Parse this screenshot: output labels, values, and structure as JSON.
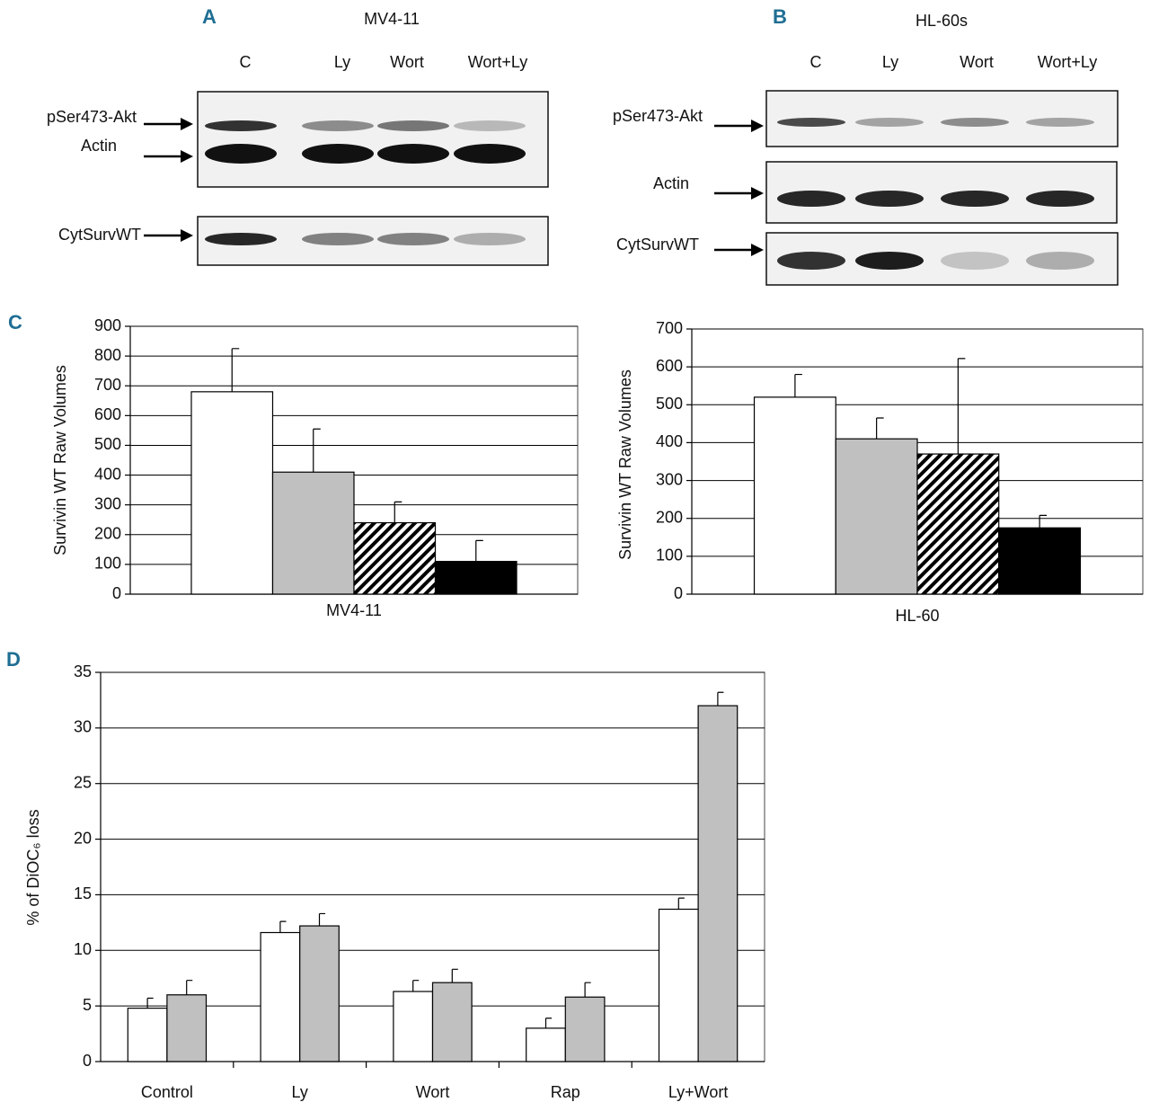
{
  "panels": [
    {
      "letter": "A",
      "title": "MV4-11",
      "lanes": [
        "C",
        "Ly",
        "Wort",
        "Wort+Ly"
      ],
      "rows": [
        "pSer473-Akt",
        "Actin",
        "CytSurvWT"
      ]
    },
    {
      "letter": "B",
      "title": "HL-60s",
      "lanes": [
        "C",
        "Ly",
        "Wort",
        "Wort+Ly"
      ],
      "rows": [
        "pSer473-Akt",
        "Actin",
        "CytSurvWT"
      ]
    }
  ],
  "chart_data": [
    {
      "type": "bar",
      "panel": "C",
      "y_label": "Survivin WT Raw Volumes",
      "categories": [
        "MV4-11"
      ],
      "series": [
        {
          "color": "#ffffff",
          "values": [
            680
          ],
          "errors": [
            145
          ]
        },
        {
          "color": "#c0c0c0",
          "values": [
            410
          ],
          "errors": [
            145
          ]
        },
        {
          "color": "#000000",
          "pattern": "stripes",
          "values": [
            240
          ],
          "errors": [
            70
          ]
        },
        {
          "color": "#000000",
          "values": [
            110
          ],
          "errors": [
            70
          ]
        }
      ],
      "ylim": [
        0,
        900
      ],
      "yticks": [
        0,
        100,
        200,
        300,
        400,
        500,
        600,
        700,
        800,
        900
      ],
      "grid": true
    },
    {
      "type": "bar",
      "y_label": "Survivin WT Raw Volumes",
      "categories": [
        "HL-60"
      ],
      "series": [
        {
          "color": "#ffffff",
          "values": [
            520
          ],
          "errors": [
            60
          ]
        },
        {
          "color": "#c0c0c0",
          "values": [
            410
          ],
          "errors": [
            55
          ]
        },
        {
          "color": "#000000",
          "pattern": "stripes",
          "values": [
            370
          ],
          "errors": [
            252
          ]
        },
        {
          "color": "#000000",
          "values": [
            175
          ],
          "errors": [
            33
          ]
        }
      ],
      "ylim": [
        0,
        700
      ],
      "yticks": [
        0,
        100,
        200,
        300,
        400,
        500,
        600,
        700
      ],
      "grid": true
    },
    {
      "type": "bar",
      "panel": "D",
      "y_label": "% of DiOC₆ loss",
      "categories": [
        "Control",
        "Ly",
        "Wort",
        "Rap",
        "Ly+Wort"
      ],
      "series": [
        {
          "color": "#ffffff",
          "values": [
            4.8,
            11.6,
            6.3,
            3.0,
            13.7
          ],
          "errors": [
            0.9,
            1.0,
            1.0,
            0.9,
            1.0
          ]
        },
        {
          "color": "#c0c0c0",
          "values": [
            6.0,
            12.2,
            7.1,
            5.8,
            32.0
          ],
          "errors": [
            1.3,
            1.1,
            1.2,
            1.3,
            1.2
          ]
        }
      ],
      "ylim": [
        0,
        35
      ],
      "yticks": [
        0,
        5,
        10,
        15,
        20,
        25,
        30,
        35
      ],
      "grid": true
    }
  ]
}
